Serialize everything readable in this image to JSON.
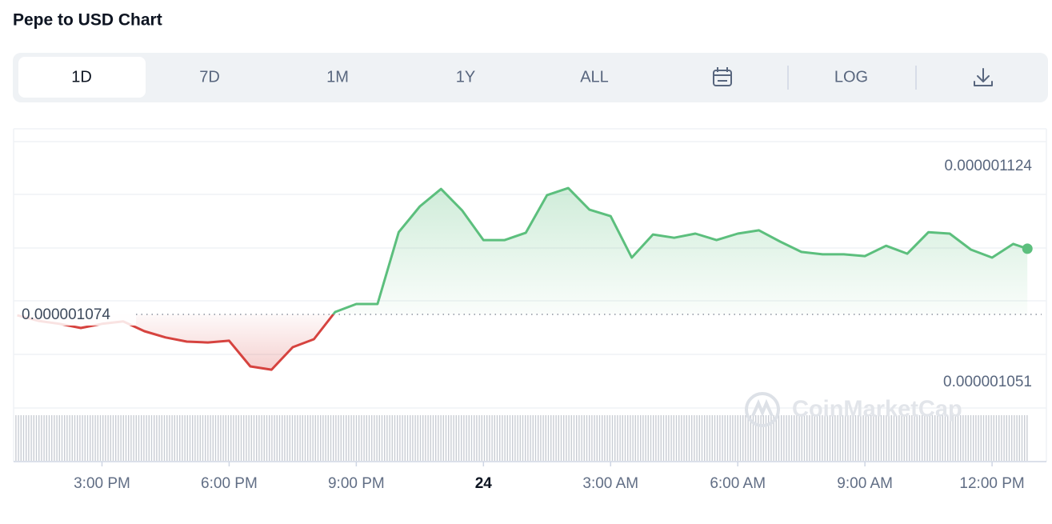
{
  "toolbar": {
    "ranges": [
      "1D",
      "7D",
      "1M",
      "1Y",
      "ALL"
    ],
    "log": "LOG"
  },
  "chart_data": {
    "type": "line",
    "title": "Pepe to USD Chart",
    "x": [
      "13:00",
      "13:30",
      "14:00",
      "14:30",
      "15:00",
      "15:30",
      "16:00",
      "16:30",
      "17:00",
      "17:30",
      "18:00",
      "18:30",
      "19:00",
      "19:30",
      "20:00",
      "20:30",
      "21:00",
      "21:30",
      "22:00",
      "22:30",
      "23:00",
      "23:30",
      "00:00",
      "00:30",
      "01:00",
      "01:30",
      "02:00",
      "02:30",
      "03:00",
      "03:30",
      "04:00",
      "04:30",
      "05:00",
      "05:30",
      "06:00",
      "06:30",
      "07:00",
      "07:30",
      "08:00",
      "08:30",
      "09:00",
      "09:30",
      "10:00",
      "10:30",
      "11:00",
      "11:30",
      "12:00",
      "12:30",
      "12:50"
    ],
    "values": [
      1.0737e-06,
      1.0718e-06,
      1.0708e-06,
      1.0694e-06,
      1.0708e-06,
      1.0716e-06,
      1.0683e-06,
      1.0662e-06,
      1.0648e-06,
      1.0645e-06,
      1.0651e-06,
      1.0564e-06,
      1.0553e-06,
      1.0629e-06,
      1.0656e-06,
      1.0748e-06,
      1.0775e-06,
      1.0775e-06,
      1.1018e-06,
      1.1105e-06,
      1.1164e-06,
      1.1091e-06,
      1.0991e-06,
      1.0991e-06,
      1.1016e-06,
      1.1143e-06,
      1.1167e-06,
      1.1094e-06,
      1.1072e-06,
      1.0932e-06,
      1.101e-06,
      1.0999e-06,
      1.1013e-06,
      1.0991e-06,
      1.1013e-06,
      1.1024e-06,
      1.0986e-06,
      1.0951e-06,
      1.0943e-06,
      1.0943e-06,
      1.0937e-06,
      1.0972e-06,
      1.0945e-06,
      1.1018e-06,
      1.1013e-06,
      1.0959e-06,
      1.0932e-06,
      1.0978e-06,
      1.0962e-06
    ],
    "reference": 1.074e-06,
    "color_up": "#5cbf7d",
    "color_down": "#d6433f",
    "xlim": [
      "12:56",
      "12:52"
    ],
    "xticks": [
      {
        "value": "15:00",
        "label": "3:00 PM"
      },
      {
        "value": "18:00",
        "label": "6:00 PM"
      },
      {
        "value": "21:00",
        "label": "9:00 PM"
      },
      {
        "value": "00:00",
        "label": "24"
      },
      {
        "value": "03:00",
        "label": "3:00 AM"
      },
      {
        "value": "06:00",
        "label": "6:00 AM"
      },
      {
        "value": "09:00",
        "label": "9:00 AM"
      },
      {
        "value": "12:00",
        "label": "12:00 PM"
      }
    ],
    "ylim": [
      1.0245e-06,
      1.1324e-06
    ],
    "yticks": [
      1.124e-06,
      1.051e-06
    ],
    "watermark": "CoinMarketCap"
  }
}
